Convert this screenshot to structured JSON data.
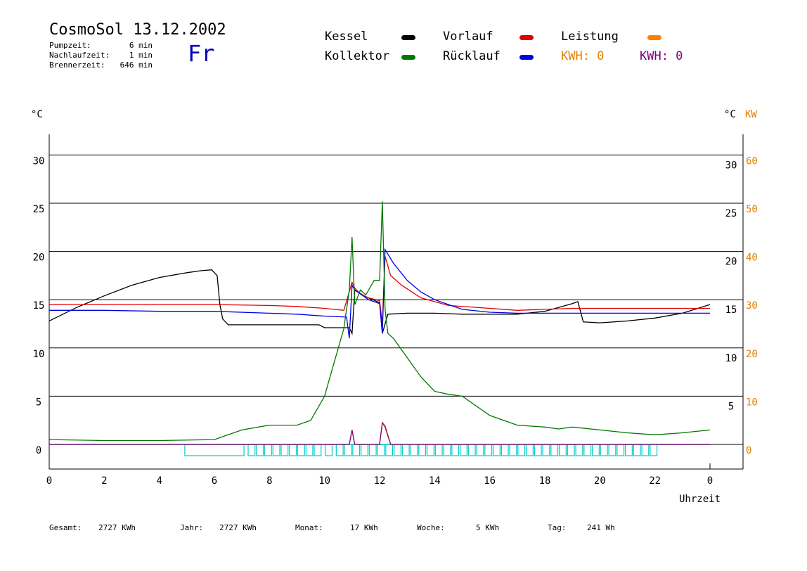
{
  "header": {
    "title": "CosmoSol 13.12.2002",
    "day": "Fr",
    "stats": [
      {
        "label": "Pumpzeit:",
        "value": "6 min"
      },
      {
        "label": "Nachlaufzeit:",
        "value": "1 min"
      },
      {
        "label": "Brennerzeit:",
        "value": "646 min"
      }
    ]
  },
  "legend": {
    "kessel": "Kessel",
    "kollektor": "Kollektor",
    "vorlauf": "Vorlauf",
    "ruecklauf": "Rücklauf",
    "leistung": "Leistung",
    "kwh1": "KWH: 0",
    "kwh2": "KWH: 0",
    "colors": {
      "kessel": "#000000",
      "kollektor": "#007800",
      "vorlauf": "#e00000",
      "ruecklauf": "#0000e0",
      "leistung": "#ff8000",
      "kwh2": "#800080",
      "pump": "#00cccc"
    }
  },
  "footer": {
    "gesamt_label": "Gesamt:",
    "gesamt_value": "2727 KWh",
    "jahr_label": "Jahr:",
    "jahr_value": "2727 KWh",
    "monat_label": "Monat:",
    "monat_value": "17 KWh",
    "woche_label": "Woche:",
    "woche_value": "5 KWh",
    "tag_label": "Tag:",
    "tag_value": "241 Wh"
  },
  "chart_data": {
    "type": "line",
    "xlabel": "Uhrzeit",
    "ylabel_left": "°C",
    "ylabel_right": "°C",
    "ylabel_right2": "KW",
    "xlim": [
      0,
      24
    ],
    "ylim": [
      -2.5,
      32
    ],
    "x_ticks": [
      "0",
      "2",
      "4",
      "6",
      "8",
      "10",
      "12",
      "14",
      "16",
      "18",
      "20",
      "22",
      "0"
    ],
    "y_ticks_left": [
      "0",
      "5",
      "10",
      "15",
      "20",
      "25",
      "30"
    ],
    "y_ticks_right": [
      "5",
      "10",
      "15",
      "20",
      "25",
      "30"
    ],
    "y_ticks_kw": [
      "0",
      "10",
      "20",
      "30",
      "40",
      "50",
      "60"
    ],
    "grid": true,
    "series": [
      {
        "name": "Kessel",
        "color": "#000000",
        "x": [
          0,
          0.5,
          1,
          2,
          3,
          4,
          5,
          5.5,
          5.9,
          6.1,
          6.2,
          6.3,
          6.5,
          7,
          8,
          9,
          9.8,
          10,
          10.5,
          10.9,
          11.0,
          11.1,
          11.5,
          12.0,
          12.1,
          12.3,
          13,
          14,
          15,
          16,
          17,
          18,
          19.0,
          19.2,
          19.4,
          20,
          21,
          22,
          23,
          24
        ],
        "y": [
          12.8,
          13.5,
          14.2,
          15.4,
          16.5,
          17.3,
          17.8,
          18.0,
          18.1,
          17.5,
          14.5,
          13.0,
          12.4,
          12.4,
          12.4,
          12.4,
          12.4,
          12.1,
          12.1,
          12.1,
          11.5,
          16.0,
          15.3,
          14.7,
          11.5,
          13.5,
          13.6,
          13.6,
          13.5,
          13.5,
          13.5,
          13.8,
          14.6,
          14.8,
          12.7,
          12.6,
          12.8,
          13.1,
          13.6,
          14.5
        ]
      },
      {
        "name": "Vorlauf",
        "color": "#e00000",
        "x": [
          0,
          2,
          4,
          6,
          8,
          9,
          10,
          10.7,
          11.0,
          11.1,
          11.3,
          11.6,
          12.0,
          12.1,
          12.2,
          12.4,
          12.8,
          13.5,
          14.5,
          16,
          17,
          18,
          19,
          20,
          22,
          24
        ],
        "y": [
          14.5,
          14.5,
          14.5,
          14.5,
          14.4,
          14.3,
          14.1,
          13.9,
          16.8,
          16.2,
          15.6,
          15.2,
          14.9,
          12.5,
          19.5,
          17.5,
          16.5,
          15.2,
          14.4,
          14.1,
          13.9,
          14.0,
          14.1,
          14.1,
          14.1,
          14.1
        ]
      },
      {
        "name": "Rücklauf",
        "color": "#0000e0",
        "x": [
          0,
          2,
          4,
          6,
          8,
          9,
          10,
          10.8,
          10.9,
          11.0,
          11.1,
          11.3,
          11.6,
          12.0,
          12.1,
          12.2,
          12.5,
          13,
          13.5,
          14,
          14.5,
          15,
          16,
          17,
          18,
          20,
          22,
          24
        ],
        "y": [
          13.9,
          13.9,
          13.8,
          13.8,
          13.6,
          13.5,
          13.3,
          13.2,
          11.0,
          16.5,
          16.0,
          15.6,
          15.0,
          14.6,
          11.5,
          20.2,
          18.8,
          17.0,
          15.8,
          15.0,
          14.5,
          14.0,
          13.7,
          13.6,
          13.6,
          13.6,
          13.6,
          13.6
        ]
      },
      {
        "name": "Kollektor",
        "color": "#007800",
        "x": [
          0,
          2,
          4,
          6,
          6.5,
          7,
          8,
          9,
          9.5,
          10,
          10.3,
          10.5,
          10.7,
          10.9,
          11.0,
          11.1,
          11.3,
          11.5,
          11.8,
          12.0,
          12.1,
          12.2,
          12.3,
          12.5,
          13,
          13.5,
          14,
          14.5,
          15,
          16,
          17,
          18,
          18.5,
          19,
          20,
          21,
          22,
          23,
          24
        ],
        "y": [
          0.5,
          0.4,
          0.4,
          0.5,
          1.0,
          1.5,
          2.0,
          2.0,
          2.5,
          5.0,
          8.0,
          10.0,
          12.0,
          16.0,
          21.5,
          14.5,
          16.0,
          15.5,
          17.0,
          17.0,
          25.2,
          14.0,
          11.5,
          11.0,
          9.0,
          7.0,
          5.5,
          5.2,
          5.0,
          3.0,
          2.0,
          1.8,
          1.6,
          1.8,
          1.5,
          1.2,
          1.0,
          1.2,
          1.5
        ]
      },
      {
        "name": "Leistung",
        "color": "#ff8000",
        "unit": "KW",
        "x": [
          0,
          10.8,
          10.9,
          11.0,
          11.1,
          12.0,
          12.1,
          12.2,
          12.4,
          24
        ],
        "y": [
          0,
          0,
          0,
          3.0,
          0,
          0,
          4.5,
          3.5,
          0,
          0
        ]
      },
      {
        "name": "Leistung2",
        "color": "#800080",
        "unit": "KW",
        "x": [
          0,
          10.9,
          11.0,
          11.1,
          12.0,
          12.1,
          12.2,
          12.4,
          24
        ],
        "y": [
          0,
          0,
          3.0,
          0,
          0,
          4.5,
          3.8,
          0,
          0
        ]
      }
    ],
    "pump_blocks": [
      [
        4.9,
        7.1
      ],
      [
        7.2,
        7.5
      ],
      [
        7.5,
        7.8
      ],
      [
        7.8,
        8.1
      ],
      [
        8.1,
        8.4
      ],
      [
        8.4,
        8.7
      ],
      [
        8.7,
        9.0
      ],
      [
        9.0,
        9.3
      ],
      [
        9.3,
        9.6
      ],
      [
        9.6,
        9.9
      ],
      [
        10.0,
        10.3
      ],
      [
        10.4,
        10.7
      ],
      [
        10.7,
        11.0
      ],
      [
        11.0,
        11.3
      ],
      [
        11.3,
        11.6
      ],
      [
        11.6,
        11.9
      ],
      [
        11.9,
        12.2
      ],
      [
        12.2,
        12.5
      ],
      [
        12.5,
        12.8
      ],
      [
        12.8,
        13.1
      ],
      [
        13.1,
        13.4
      ],
      [
        13.4,
        13.7
      ],
      [
        13.7,
        14.0
      ],
      [
        14.0,
        14.3
      ],
      [
        14.3,
        14.6
      ],
      [
        14.6,
        14.9
      ],
      [
        14.9,
        15.2
      ],
      [
        15.2,
        15.5
      ],
      [
        15.5,
        15.8
      ],
      [
        15.8,
        16.1
      ],
      [
        16.1,
        16.4
      ],
      [
        16.4,
        16.7
      ],
      [
        16.7,
        17.0
      ],
      [
        17.0,
        17.3
      ],
      [
        17.3,
        17.6
      ],
      [
        17.6,
        17.9
      ],
      [
        17.9,
        18.2
      ],
      [
        18.2,
        18.5
      ],
      [
        18.5,
        18.8
      ],
      [
        18.8,
        19.1
      ],
      [
        19.1,
        19.4
      ],
      [
        19.4,
        19.7
      ],
      [
        19.7,
        20.0
      ],
      [
        20.0,
        20.3
      ],
      [
        20.3,
        20.6
      ],
      [
        20.6,
        20.9
      ],
      [
        20.9,
        21.2
      ],
      [
        21.2,
        21.5
      ],
      [
        21.5,
        21.8
      ],
      [
        21.8,
        22.1
      ]
    ]
  }
}
